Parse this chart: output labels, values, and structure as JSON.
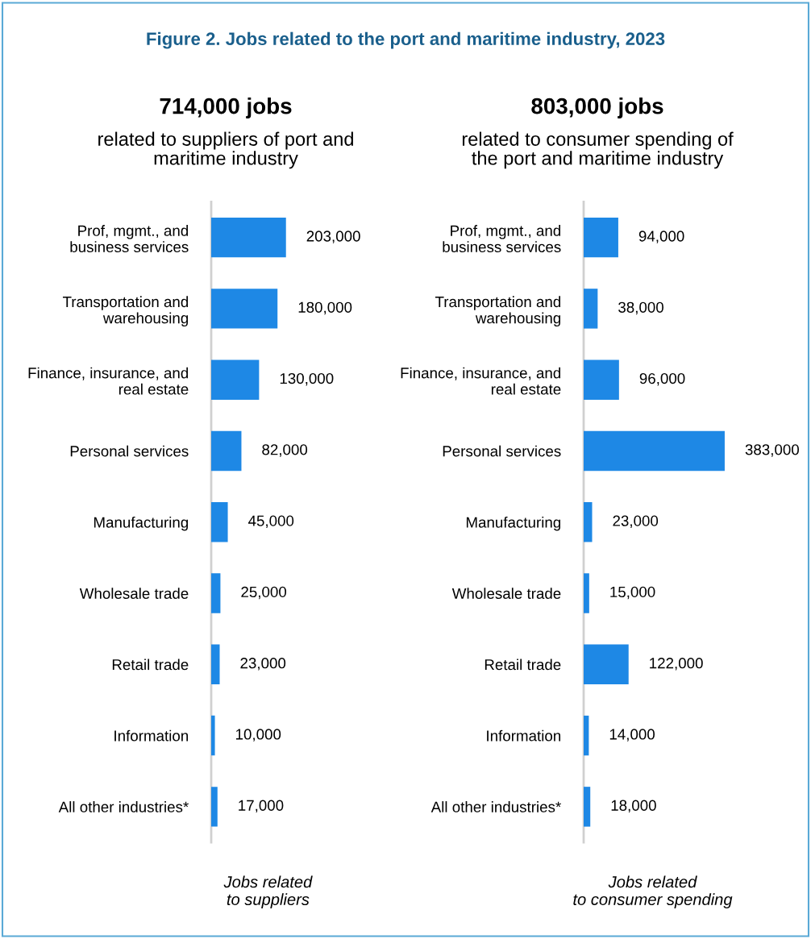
{
  "chart_data": [
    {
      "type": "bar",
      "orientation": "horizontal",
      "title": "714,000 jobs",
      "subtitle": "related to suppliers of port and\nmaritime industry",
      "xlabel": "Jobs related\nto suppliers",
      "annotations": [
        "Figure 2. Jobs related to the port and maritime industry, 2023"
      ],
      "categories": [
        "Prof, mgmt., and\nbusiness services",
        "Transportation and\nwarehousing",
        "Finance, insurance, and\nreal estate",
        "Personal services",
        "Manufacturing",
        "Wholesale trade",
        "Retail trade",
        "Information",
        "All other industries*"
      ],
      "values": [
        203000,
        180000,
        130000,
        82000,
        45000,
        25000,
        23000,
        10000,
        17000
      ],
      "value_labels": [
        "203,000",
        "180,000",
        "130,000",
        "82,000",
        "45,000",
        "25,000",
        "23,000",
        "10,000",
        "17,000"
      ],
      "color": "#1e88e5",
      "grid": false,
      "legend": false,
      "tick_labels": "y"
    },
    {
      "type": "bar",
      "orientation": "horizontal",
      "title": "803,000 jobs",
      "subtitle": "related to consumer spending of\nthe port and maritime industry",
      "xlabel": "Jobs related\nto consumer spending",
      "categories": [
        "Prof, mgmt., and\nbusiness services",
        "Transportation and\nwarehousing",
        "Finance, insurance, and\nreal estate",
        "Personal services",
        "Manufacturing",
        "Wholesale trade",
        "Retail trade",
        "Information",
        "All other industries*"
      ],
      "values": [
        94000,
        38000,
        96000,
        383000,
        23000,
        15000,
        122000,
        14000,
        18000
      ],
      "value_labels": [
        "94,000",
        "38,000",
        "96,000",
        "383,000",
        "23,000",
        "15,000",
        "122,000",
        "14,000",
        "18,000"
      ],
      "color": "#1e88e5",
      "grid": false,
      "legend": false,
      "tick_labels": "y"
    }
  ]
}
